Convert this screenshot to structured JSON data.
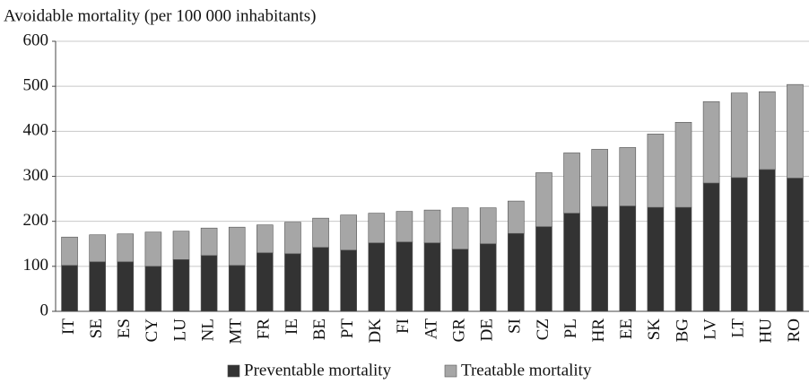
{
  "chart_data": {
    "type": "bar",
    "stacked": true,
    "title": "Avoidable mortality (per  100 000 inhabitants)",
    "categories": [
      "IT",
      "SE",
      "ES",
      "CY",
      "LU",
      "NL",
      "MT",
      "FR",
      "IE",
      "BE",
      "PT",
      "DK",
      "FI",
      "AT",
      "GR",
      "DE",
      "SI",
      "CZ",
      "PL",
      "HR",
      "EE",
      "SK",
      "BG",
      "LV",
      "LT",
      "HU",
      "RO"
    ],
    "series": [
      {
        "name": "Preventable mortality",
        "color": "#333333",
        "values": [
          102,
          110,
          110,
          100,
          115,
          124,
          102,
          130,
          128,
          142,
          136,
          152,
          154,
          152,
          138,
          150,
          173,
          188,
          218,
          233,
          234,
          231,
          231,
          285,
          297,
          315,
          296
        ]
      },
      {
        "name": "Treatable mortality",
        "color": "#a6a6a6",
        "values": [
          63,
          60,
          62,
          76,
          63,
          61,
          85,
          62,
          70,
          65,
          78,
          66,
          68,
          73,
          92,
          80,
          72,
          120,
          134,
          127,
          130,
          163,
          189,
          181,
          188,
          173,
          208
        ]
      }
    ],
    "ylim": [
      0,
      600
    ],
    "yticks": [
      0,
      100,
      200,
      300,
      400,
      500,
      600
    ],
    "grid": true,
    "legend": "bottom"
  }
}
